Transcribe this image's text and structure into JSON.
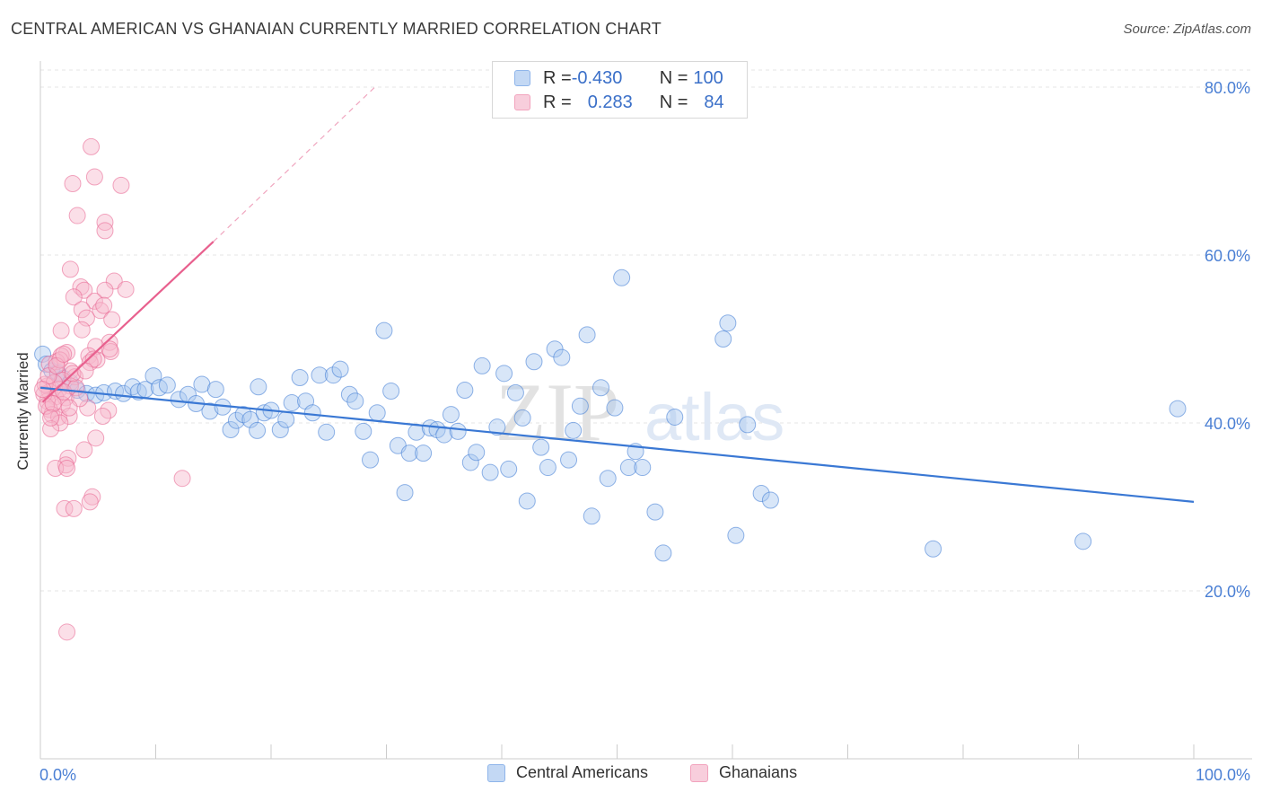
{
  "title": "CENTRAL AMERICAN VS GHANAIAN CURRENTLY MARRIED CORRELATION CHART",
  "source": "Source: ZipAtlas.com",
  "watermark": {
    "zip": "ZIP",
    "atlas": "atlas"
  },
  "legend_top": {
    "rows": [
      {
        "r_key": "R = ",
        "r_value": "-0.430",
        "n_key": "N = ",
        "n_value": "100",
        "color": "#8fb5ea"
      },
      {
        "r_key": "R = ",
        "r_value": "0.283",
        "n_key": "N = ",
        "n_value": "84",
        "color": "#f2a3bd"
      }
    ]
  },
  "legend_bottom": [
    {
      "label": "Central Americans",
      "color": "#8fb5ea"
    },
    {
      "label": "Ghanaians",
      "color": "#f2a3bd"
    }
  ],
  "chart_data": {
    "type": "scatter",
    "title": "CENTRAL AMERICAN VS GHANAIAN CURRENTLY MARRIED CORRELATION CHART",
    "xlabel": "",
    "ylabel": "Currently Married",
    "xlim": [
      0,
      100
    ],
    "ylim": [
      0,
      80
    ],
    "x_tick_labels": [
      "0.0%",
      "100.0%"
    ],
    "y_ticks": [
      20,
      40,
      60,
      80
    ],
    "y_tick_labels": [
      "20.0%",
      "40.0%",
      "60.0%",
      "80.0%"
    ],
    "grid": true,
    "legend": "bottom-center",
    "series": [
      {
        "name": "Central Americans",
        "color": "#3a78d4",
        "fill": "#a9c8f0",
        "r": -0.43,
        "n": 100,
        "trend": {
          "x": [
            0,
            100
          ],
          "y": [
            44.2,
            30.6
          ]
        },
        "points": [
          [
            0.2,
            48.2
          ],
          [
            0.5,
            47.0
          ],
          [
            1.0,
            46.2
          ],
          [
            1.5,
            46.0
          ],
          [
            2.0,
            45.3
          ],
          [
            2.6,
            44.8
          ],
          [
            3.2,
            43.9
          ],
          [
            4.0,
            43.5
          ],
          [
            4.8,
            43.3
          ],
          [
            5.5,
            43.6
          ],
          [
            6.5,
            43.8
          ],
          [
            7.2,
            43.5
          ],
          [
            8.0,
            44.3
          ],
          [
            8.5,
            43.7
          ],
          [
            9.1,
            44.0
          ],
          [
            9.8,
            45.6
          ],
          [
            10.3,
            44.2
          ],
          [
            11.0,
            44.5
          ],
          [
            12.0,
            42.8
          ],
          [
            12.8,
            43.4
          ],
          [
            13.5,
            42.3
          ],
          [
            14.0,
            44.6
          ],
          [
            14.7,
            41.4
          ],
          [
            15.2,
            44.0
          ],
          [
            15.8,
            41.9
          ],
          [
            16.5,
            39.2
          ],
          [
            17.0,
            40.3
          ],
          [
            17.6,
            41.0
          ],
          [
            18.2,
            40.4
          ],
          [
            18.8,
            39.1
          ],
          [
            19.4,
            41.2
          ],
          [
            20.0,
            41.5
          ],
          [
            20.8,
            39.2
          ],
          [
            21.3,
            40.4
          ],
          [
            21.8,
            42.4
          ],
          [
            22.5,
            45.4
          ],
          [
            23.0,
            42.6
          ],
          [
            23.6,
            41.2
          ],
          [
            24.2,
            45.7
          ],
          [
            24.8,
            38.9
          ],
          [
            25.4,
            45.7
          ],
          [
            26.0,
            46.4
          ],
          [
            26.8,
            43.4
          ],
          [
            27.3,
            42.6
          ],
          [
            28.0,
            39.0
          ],
          [
            28.6,
            35.6
          ],
          [
            29.2,
            41.2
          ],
          [
            29.8,
            51.0
          ],
          [
            30.4,
            43.8
          ],
          [
            31.0,
            37.3
          ],
          [
            31.6,
            31.7
          ],
          [
            32.0,
            36.4
          ],
          [
            32.6,
            38.9
          ],
          [
            33.2,
            36.4
          ],
          [
            33.8,
            39.4
          ],
          [
            34.4,
            39.2
          ],
          [
            35.0,
            38.6
          ],
          [
            35.6,
            41.0
          ],
          [
            36.2,
            39.0
          ],
          [
            36.8,
            43.9
          ],
          [
            37.3,
            35.3
          ],
          [
            37.8,
            36.5
          ],
          [
            38.3,
            46.8
          ],
          [
            39.0,
            34.1
          ],
          [
            39.6,
            39.5
          ],
          [
            40.2,
            45.9
          ],
          [
            40.6,
            34.5
          ],
          [
            41.2,
            43.6
          ],
          [
            41.8,
            40.6
          ],
          [
            42.2,
            30.7
          ],
          [
            42.8,
            47.3
          ],
          [
            43.4,
            37.1
          ],
          [
            44.0,
            34.7
          ],
          [
            44.6,
            48.8
          ],
          [
            45.2,
            47.8
          ],
          [
            45.8,
            35.6
          ],
          [
            46.2,
            39.1
          ],
          [
            46.8,
            42.0
          ],
          [
            47.4,
            50.5
          ],
          [
            47.8,
            28.9
          ],
          [
            48.6,
            44.2
          ],
          [
            49.2,
            33.4
          ],
          [
            49.8,
            41.8
          ],
          [
            50.4,
            57.3
          ],
          [
            51.0,
            34.7
          ],
          [
            51.6,
            36.6
          ],
          [
            52.2,
            34.7
          ],
          [
            53.3,
            29.4
          ],
          [
            54.0,
            24.5
          ],
          [
            55.0,
            40.7
          ],
          [
            59.2,
            50.0
          ],
          [
            59.6,
            51.9
          ],
          [
            60.3,
            26.6
          ],
          [
            61.3,
            39.8
          ],
          [
            62.5,
            31.6
          ],
          [
            63.3,
            30.8
          ],
          [
            77.4,
            25.0
          ],
          [
            90.4,
            25.9
          ],
          [
            98.6,
            41.7
          ],
          [
            18.9,
            44.3
          ]
        ]
      },
      {
        "name": "Ghanaians",
        "color": "#e8608e",
        "fill": "#f7b8cc",
        "r": 0.283,
        "n": 84,
        "trend": {
          "x": [
            0.2,
            15.0
          ],
          "y": [
            42.5,
            61.6
          ]
        },
        "trend_extension": {
          "x": [
            15.0,
            29.0
          ],
          "y": [
            61.6,
            80.0
          ]
        },
        "points": [
          [
            4.4,
            72.9
          ],
          [
            4.7,
            69.3
          ],
          [
            2.8,
            68.5
          ],
          [
            7.0,
            68.3
          ],
          [
            3.2,
            64.7
          ],
          [
            5.6,
            63.9
          ],
          [
            5.6,
            62.9
          ],
          [
            2.6,
            58.3
          ],
          [
            6.4,
            56.9
          ],
          [
            3.5,
            56.2
          ],
          [
            3.8,
            55.8
          ],
          [
            7.4,
            55.9
          ],
          [
            5.6,
            55.8
          ],
          [
            2.9,
            55.0
          ],
          [
            4.7,
            54.5
          ],
          [
            3.6,
            53.5
          ],
          [
            5.2,
            53.4
          ],
          [
            5.5,
            54.0
          ],
          [
            4.0,
            52.5
          ],
          [
            6.2,
            52.3
          ],
          [
            3.6,
            51.1
          ],
          [
            1.8,
            51.0
          ],
          [
            6.0,
            49.6
          ],
          [
            4.8,
            49.1
          ],
          [
            6.1,
            48.5
          ],
          [
            6.0,
            48.8
          ],
          [
            2.3,
            48.4
          ],
          [
            4.2,
            48.0
          ],
          [
            1.8,
            48.0
          ],
          [
            4.9,
            47.5
          ],
          [
            1.4,
            47.3
          ],
          [
            4.3,
            47.2
          ],
          [
            0.8,
            47.0
          ],
          [
            2.6,
            46.2
          ],
          [
            1.5,
            45.8
          ],
          [
            3.0,
            45.5
          ],
          [
            1.9,
            45.1
          ],
          [
            2.6,
            44.4
          ],
          [
            0.6,
            44.4
          ],
          [
            1.6,
            44.0
          ],
          [
            0.8,
            43.7
          ],
          [
            1.3,
            43.1
          ],
          [
            2.2,
            43.0
          ],
          [
            0.6,
            42.6
          ],
          [
            1.9,
            42.2
          ],
          [
            0.8,
            41.6
          ],
          [
            4.1,
            41.8
          ],
          [
            5.9,
            41.5
          ],
          [
            1.0,
            41.0
          ],
          [
            1.6,
            40.7
          ],
          [
            2.5,
            40.8
          ],
          [
            5.4,
            40.8
          ],
          [
            1.7,
            40.0
          ],
          [
            0.9,
            39.3
          ],
          [
            4.8,
            38.2
          ],
          [
            3.8,
            36.8
          ],
          [
            2.4,
            35.8
          ],
          [
            2.2,
            35.0
          ],
          [
            1.3,
            34.6
          ],
          [
            2.3,
            34.6
          ],
          [
            12.3,
            33.4
          ],
          [
            4.5,
            31.2
          ],
          [
            4.3,
            30.6
          ],
          [
            2.1,
            29.8
          ],
          [
            2.9,
            29.8
          ],
          [
            2.3,
            15.1
          ],
          [
            0.4,
            44.6
          ],
          [
            1.2,
            44.8
          ],
          [
            0.3,
            43.4
          ],
          [
            2.0,
            43.7
          ],
          [
            3.1,
            44.2
          ],
          [
            0.5,
            42.0
          ],
          [
            1.1,
            42.3
          ],
          [
            2.8,
            45.9
          ],
          [
            1.7,
            47.5
          ],
          [
            0.7,
            45.6
          ],
          [
            3.4,
            42.9
          ],
          [
            2.5,
            41.8
          ],
          [
            0.9,
            40.6
          ],
          [
            4.6,
            47.6
          ],
          [
            3.9,
            46.2
          ],
          [
            1.4,
            46.8
          ],
          [
            2.0,
            48.2
          ],
          [
            0.2,
            44.0
          ]
        ]
      }
    ]
  }
}
